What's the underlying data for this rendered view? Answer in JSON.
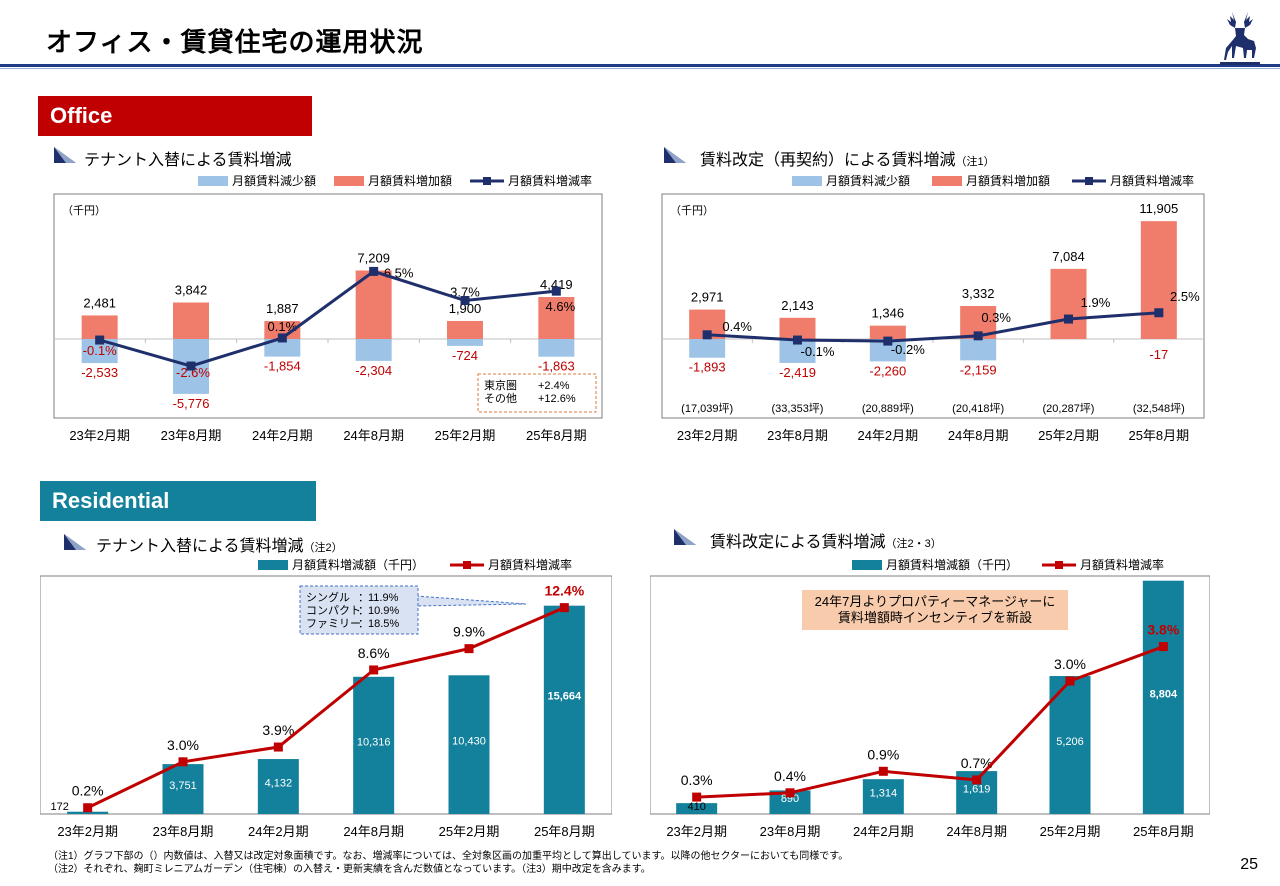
{
  "page_title": "オフィス・賃貸住宅の運用状況",
  "page_number": "25",
  "office_section": "Office",
  "residential_section": "Residential",
  "footnotes": [
    "（注1）グラフ下部の（）内数値は、入替又は改定対象面積です。なお、増減率については、全対象区画の加重平均として算出しています。以降の他セクターにおいても同様です。",
    "（注2）それぞれ、麹町ミレニアムガーデン（住宅棟）の入替え・更新実績を含んだ数値となっています。（注3）期中改定を含みます。"
  ],
  "colors": {
    "navy": "#1f2f6b",
    "red_bar": "#f07c6c",
    "blue_bar": "#9dc3e6",
    "teal": "#13819c",
    "crimson": "#c00000",
    "office_red": "#c00000"
  },
  "chart_data": [
    {
      "id": "office_tenant",
      "type": "bar",
      "title": "テナント入替による賃料増減",
      "title_note": "",
      "yunit": "（千円）",
      "legend": [
        "月額賃料減少額",
        "月額賃料増加額",
        "月額賃料増減率"
      ],
      "categories": [
        "23年2月期",
        "23年8月期",
        "24年2月期",
        "24年8月期",
        "25年2月期",
        "25年8月期"
      ],
      "series": [
        {
          "name": "月額賃料増加額",
          "values": [
            2481,
            3842,
            1887,
            7209,
            1900,
            4419
          ],
          "labels": [
            "2,481",
            "3,842",
            "1,887",
            "7,209",
            "1,900",
            "4,419"
          ]
        },
        {
          "name": "月額賃料減少額",
          "values": [
            -2533,
            -5776,
            -1854,
            -2304,
            -724,
            -1863
          ],
          "labels": [
            "-2,533",
            "-5,776",
            "-1,854",
            "-2,304",
            "-724",
            "-1,863"
          ]
        },
        {
          "name": "月額賃料増減率",
          "values": [
            -0.1,
            -2.6,
            0.1,
            6.5,
            3.7,
            4.6
          ],
          "labels": [
            "-0.1%",
            "-2.6%",
            "0.1%",
            "6.5%",
            "3.7%",
            "4.6%"
          ]
        }
      ],
      "note_box": [
        [
          "東京圏",
          "+2.4%"
        ],
        [
          "その他",
          "+12.6%"
        ]
      ]
    },
    {
      "id": "office_renewal",
      "type": "bar",
      "title": "賃料改定（再契約）による賃料増減",
      "title_note": "（注1）",
      "yunit": "（千円）",
      "legend": [
        "月額賃料減少額",
        "月額賃料増加額",
        "月額賃料増減率"
      ],
      "categories": [
        "23年2月期",
        "23年8月期",
        "24年2月期",
        "24年8月期",
        "25年2月期",
        "25年8月期"
      ],
      "series": [
        {
          "name": "月額賃料増加額",
          "values": [
            2971,
            2143,
            1346,
            3332,
            7084,
            11905
          ],
          "labels": [
            "2,971",
            "2,143",
            "1,346",
            "3,332",
            "7,084",
            "11,905"
          ]
        },
        {
          "name": "月額賃料減少額",
          "values": [
            -1893,
            -2419,
            -2260,
            -2159,
            0,
            -17
          ],
          "labels": [
            "-1,893",
            "-2,419",
            "-2,260",
            "-2,159",
            "",
            "-17"
          ]
        },
        {
          "name": "月額賃料増減率",
          "values": [
            0.4,
            -0.1,
            -0.2,
            0.3,
            1.9,
            2.5
          ],
          "labels": [
            "0.4%",
            "-0.1%",
            "-0.2%",
            "0.3%",
            "1.9%",
            "2.5%"
          ]
        }
      ],
      "areas": [
        "(17,039坪)",
        "(33,353坪)",
        "(20,889坪)",
        "(20,418坪)",
        "(20,287坪)",
        "(32,548坪)"
      ]
    },
    {
      "id": "res_tenant",
      "type": "bar",
      "title": "テナント入替による賃料増減",
      "title_note": "（注2）",
      "legend": [
        "月額賃料増減額（千円）",
        "月額賃料増減率"
      ],
      "categories": [
        "23年2月期",
        "23年8月期",
        "24年2月期",
        "24年8月期",
        "25年2月期",
        "25年8月期"
      ],
      "series": [
        {
          "name": "月額賃料増減額（千円）",
          "values": [
            172,
            3751,
            4132,
            10316,
            10430,
            15664
          ],
          "labels": [
            "172",
            "3,751",
            "4,132",
            "10,316",
            "10,430",
            "15,664"
          ]
        },
        {
          "name": "月額賃料増減率",
          "values": [
            0.2,
            3.0,
            3.9,
            8.6,
            9.9,
            12.4
          ],
          "labels": [
            "0.2%",
            "3.0%",
            "3.9%",
            "8.6%",
            "9.9%",
            "12.4%"
          ]
        }
      ],
      "callout": [
        [
          "シングル",
          "：",
          "11.9%"
        ],
        [
          "コンパクト",
          "：",
          "10.9%"
        ],
        [
          "ファミリー",
          "：",
          "18.5%"
        ]
      ]
    },
    {
      "id": "res_renewal",
      "type": "bar",
      "title": "賃料改定による賃料増減",
      "title_note": "（注2・3）",
      "legend": [
        "月額賃料増減額（千円）",
        "月額賃料増減率"
      ],
      "categories": [
        "23年2月期",
        "23年8月期",
        "24年2月期",
        "24年8月期",
        "25年2月期",
        "25年8月期"
      ],
      "series": [
        {
          "name": "月額賃料増減額（千円）",
          "values": [
            410,
            890,
            1314,
            1619,
            5206,
            8804
          ],
          "labels": [
            "410",
            "890",
            "1,314",
            "1,619",
            "5,206",
            "8,804"
          ]
        },
        {
          "name": "月額賃料増減率",
          "values": [
            0.3,
            0.4,
            0.9,
            0.7,
            3.0,
            3.8
          ],
          "labels": [
            "0.3%",
            "0.4%",
            "0.9%",
            "0.7%",
            "3.0%",
            "3.8%"
          ]
        }
      ],
      "note": "24年7月よりプロパティーマネージャーに\n賃料増額時インセンティブを新設"
    }
  ]
}
